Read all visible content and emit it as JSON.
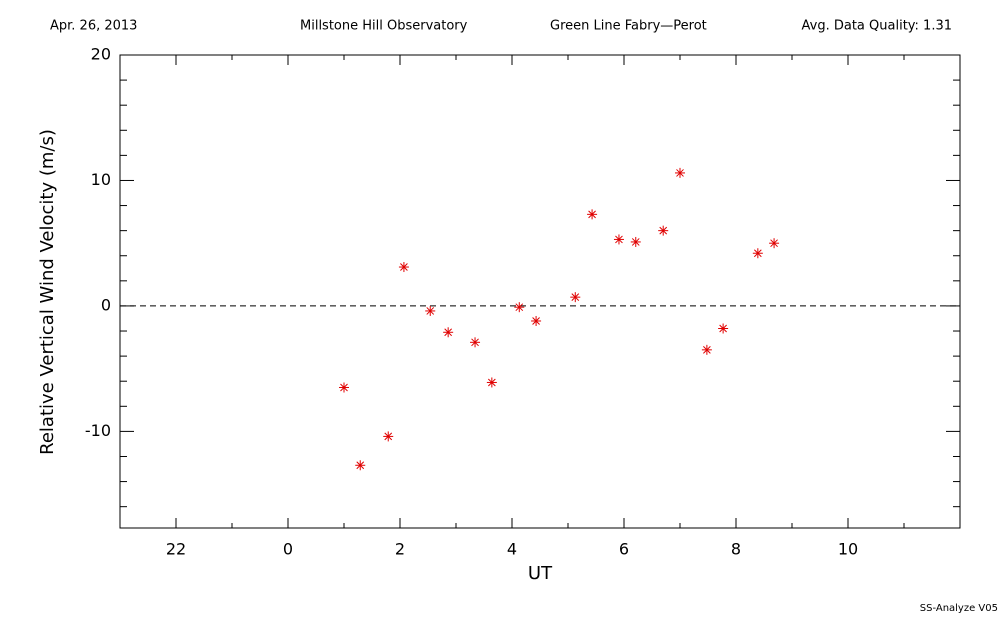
{
  "chart_data": {
    "type": "scatter",
    "header": [
      "Apr. 26, 2013",
      "Millstone Hill Observatory",
      "Green Line Fabry—Perot",
      "Avg. Data Quality: 1.31"
    ],
    "footer": "SS-Analyze V05",
    "xlabel": "UT",
    "ylabel": "Relative Vertical Wind Velocity (m/s)",
    "xlim": [
      -3,
      12
    ],
    "xticks": [
      {
        "value": -2,
        "label": "22"
      },
      0,
      2,
      4,
      6,
      8,
      10
    ],
    "xminor": [
      -1,
      1,
      3,
      5,
      7,
      9,
      11
    ],
    "ylim": [
      -17.7,
      20
    ],
    "yticks": [
      -10,
      0,
      10,
      20
    ],
    "yminor": [
      -16,
      -14,
      -12,
      -8,
      -6,
      -4,
      -2,
      2,
      4,
      6,
      8,
      12,
      14,
      16,
      18
    ],
    "zero_line": true,
    "color": "#e00000",
    "x": [
      1.0,
      1.29,
      1.79,
      2.07,
      2.54,
      2.86,
      3.34,
      3.64,
      4.13,
      4.43,
      5.13,
      5.43,
      5.91,
      6.21,
      6.7,
      7.0,
      7.48,
      7.77,
      8.39,
      8.68
    ],
    "values": [
      -6.5,
      -12.7,
      -10.4,
      3.1,
      -0.4,
      -2.1,
      -2.9,
      -6.1,
      -0.1,
      -1.2,
      0.7,
      7.3,
      5.3,
      5.1,
      6.0,
      10.6,
      -3.5,
      -1.8,
      4.2,
      5.0
    ]
  }
}
